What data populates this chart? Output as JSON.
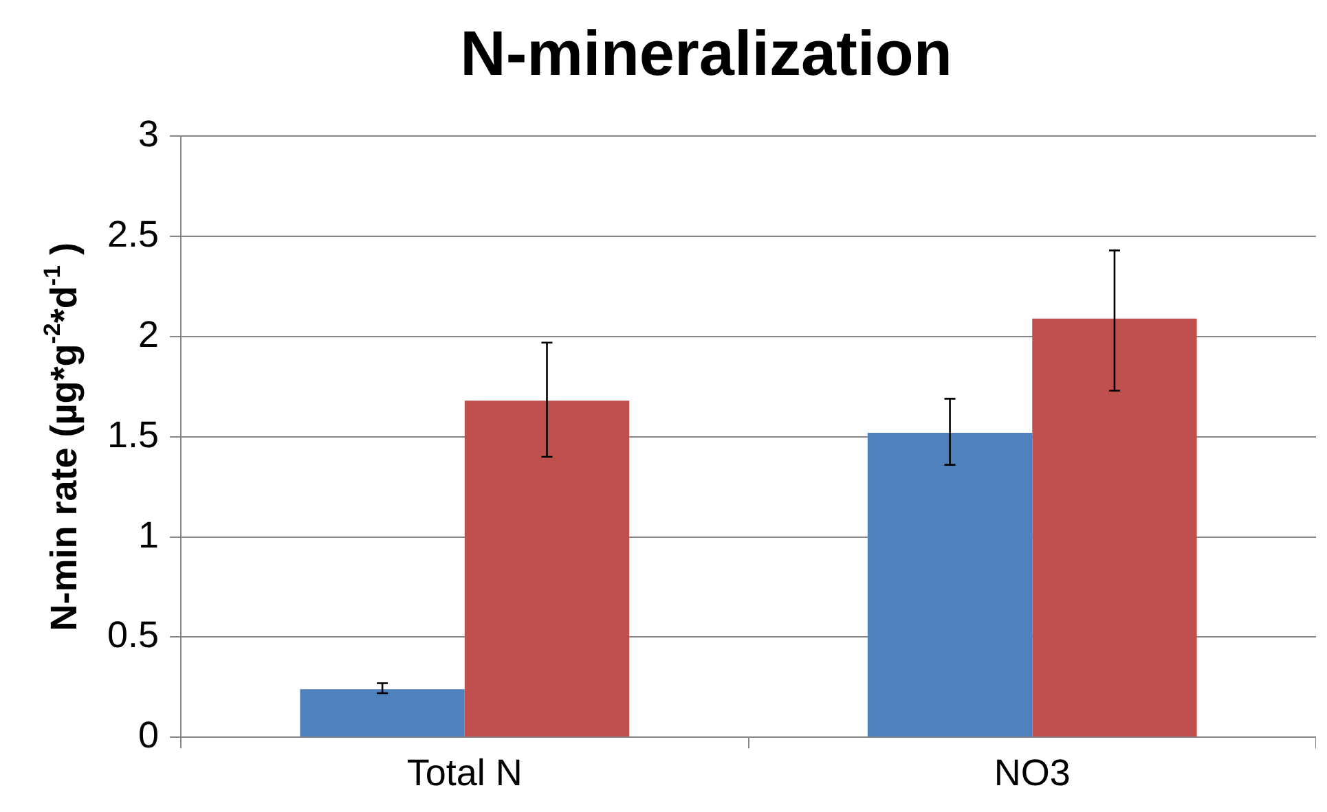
{
  "chart_data": {
    "type": "bar",
    "title": "N-mineralization",
    "ylabel": "N-min rate (µg*g$^{-2}$*d$^{-1}$ )",
    "categories": [
      "Total N",
      "NO3"
    ],
    "series": [
      {
        "color": "#4f81bd",
        "values": [
          0.24,
          1.52
        ],
        "errors": [
          [
            0.22,
            0.27
          ],
          [
            1.36,
            1.69
          ]
        ]
      },
      {
        "color": "#c0504d",
        "values": [
          1.68,
          2.09
        ],
        "errors": [
          [
            1.4,
            1.97
          ],
          [
            1.73,
            2.43
          ]
        ]
      }
    ],
    "ylim": [
      0,
      3
    ],
    "yticks": [
      0,
      0.5,
      1,
      1.5,
      2,
      2.5,
      3
    ],
    "grid": "y",
    "legend": false
  }
}
